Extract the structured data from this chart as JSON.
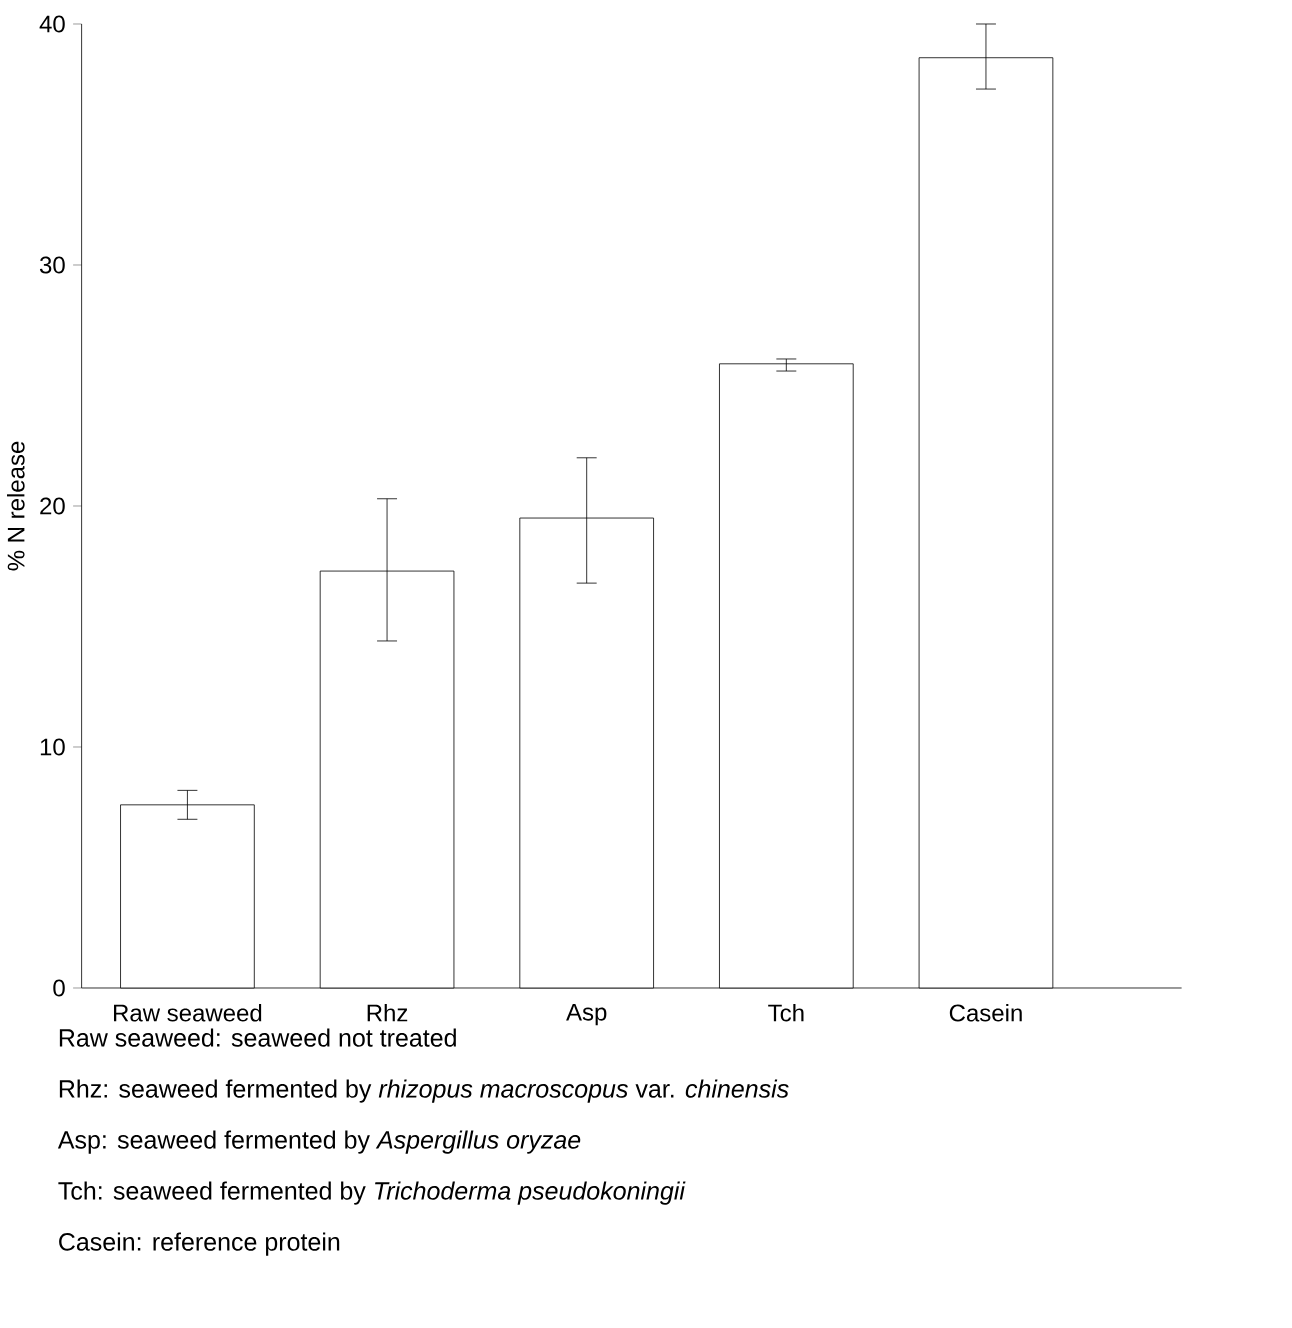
{
  "chart_data": {
    "type": "bar",
    "ylabel": "% N release",
    "categories": [
      "Raw seaweed",
      "Rhz",
      "Asp",
      "Tch",
      "Casein"
    ],
    "values": [
      7.6,
      17.3,
      19.5,
      25.9,
      38.6
    ],
    "errors": [
      [
        7.0,
        8.2
      ],
      [
        14.4,
        20.3
      ],
      [
        16.8,
        22.0
      ],
      [
        25.6,
        26.1
      ],
      [
        37.3,
        40.0
      ]
    ],
    "color": "#ffffff",
    "ylim": [
      0,
      40
    ],
    "yticks": [
      0,
      10,
      20,
      30,
      40
    ],
    "annotations": [
      "Raw seaweed: seaweed not treated",
      "Rhz: seaweed fermented by *rhizopus macroscopus* var. *chinensis*",
      "Asp: seaweed fermented by *Aspergillus oryzae*",
      "Tch: seaweed fermented by *Trichoderma pseudokoningii*",
      "Casein: reference protein"
    ]
  }
}
